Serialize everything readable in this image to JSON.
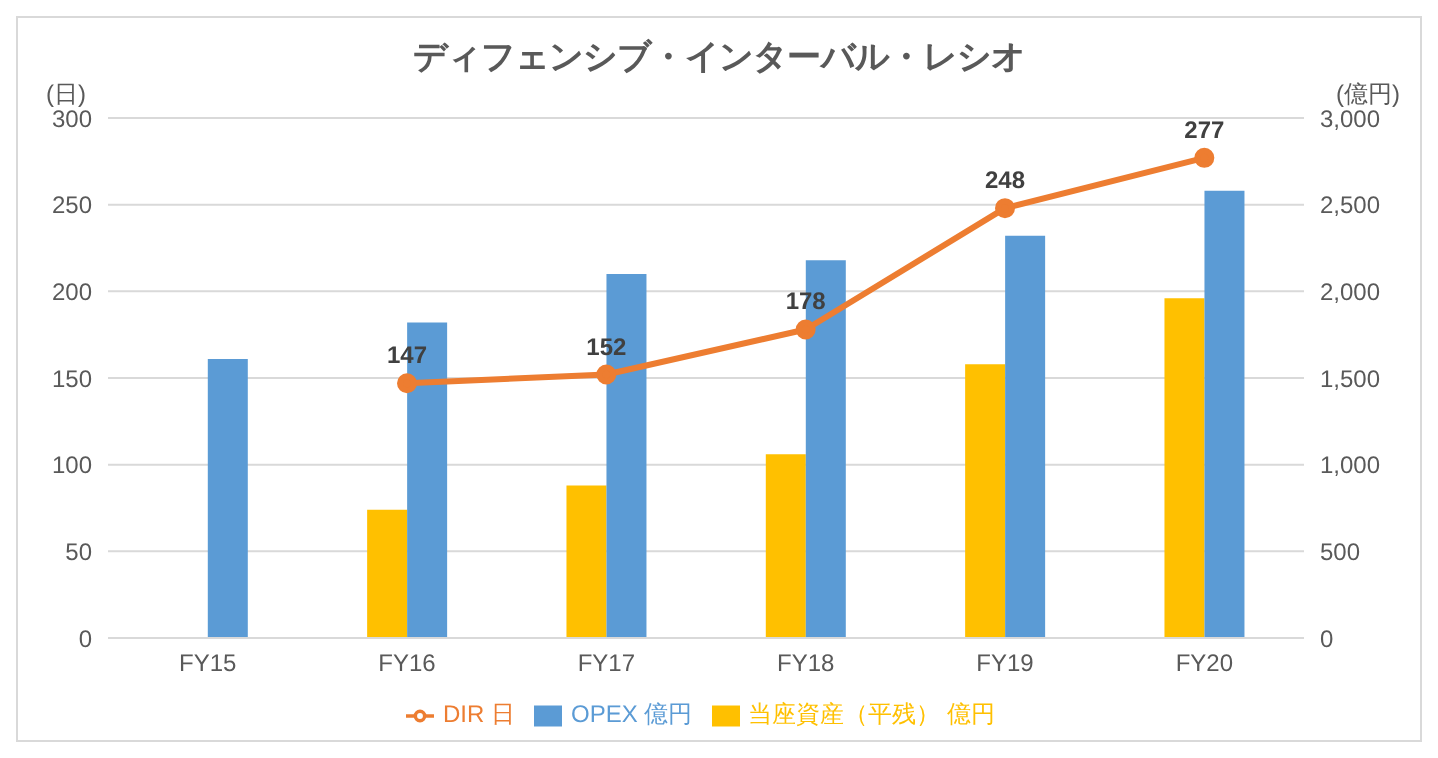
{
  "chart_data": {
    "type": "bar",
    "title": "ディフェンシブ・インターバル・レシオ",
    "ylabel": "(日)",
    "y2label": "(億円)",
    "categories": [
      "FY15",
      "FY16",
      "FY17",
      "FY18",
      "FY19",
      "FY20"
    ],
    "series": [
      {
        "name": "当座資産（平残） 億円",
        "color": "#ffc000",
        "axis": "y2",
        "values": [
          null,
          740,
          880,
          1060,
          1580,
          1960
        ]
      },
      {
        "name": "OPEX 億円",
        "color": "#5b9bd5",
        "axis": "y2",
        "values": [
          1610,
          1820,
          2100,
          2180,
          2320,
          2580
        ]
      },
      {
        "name": "DIR 日",
        "type": "line",
        "color": "#ed7d31",
        "marker": "circle",
        "values": [
          null,
          147,
          152,
          178,
          248,
          277
        ],
        "value_labels": [
          null,
          "147",
          "152",
          "178",
          "248",
          "277"
        ]
      }
    ],
    "ylim": [
      0,
      300
    ],
    "yticks": [
      0,
      50,
      100,
      150,
      200,
      250,
      300
    ],
    "y2lim": [
      0,
      3000
    ],
    "y2ticks": [
      0,
      {
        "value": 500,
        "label": "500"
      },
      {
        "value": 1000,
        "label": "1,000"
      },
      {
        "value": 1500,
        "label": "1,500"
      },
      {
        "value": 2000,
        "label": "2,000"
      },
      {
        "value": 2500,
        "label": "2,500"
      },
      {
        "value": 3000,
        "label": "3,000"
      }
    ],
    "grid": "y",
    "legend": "bottom"
  }
}
